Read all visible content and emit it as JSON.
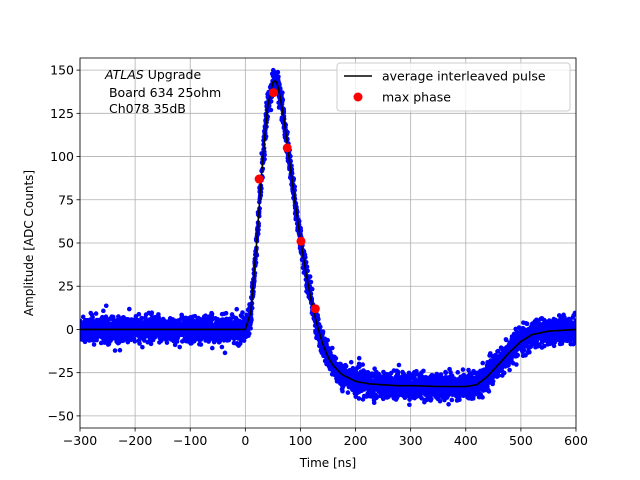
{
  "chart_data": {
    "type": "scatter",
    "title": "",
    "xlabel": "Time [ns]",
    "ylabel": "Amplitude [ADC Counts]",
    "xlim": [
      -300,
      600
    ],
    "ylim": [
      -57,
      157
    ],
    "xticks": [
      -300,
      -200,
      -100,
      0,
      100,
      200,
      300,
      400,
      500,
      600
    ],
    "yticks": [
      -50,
      -25,
      0,
      25,
      50,
      75,
      100,
      125,
      150
    ],
    "xtick_labels": [
      "−300",
      "−200",
      "−100",
      "0",
      "100",
      "200",
      "300",
      "400",
      "500",
      "600"
    ],
    "ytick_labels": [
      "−50",
      "−25",
      "0",
      "25",
      "50",
      "75",
      "100",
      "125",
      "150"
    ],
    "grid": true,
    "legend_position": "top-right",
    "annotation": {
      "experiment": "ATLAS",
      "experiment_suffix": " Upgrade",
      "line2": " Board 634 25ohm",
      "line3": " Ch078 35dB"
    },
    "series": [
      {
        "name": "",
        "kind": "scatter-band",
        "color": "#0000ff",
        "x": [
          -300,
          -250,
          -200,
          -150,
          -100,
          -50,
          -10,
          0,
          10,
          20,
          30,
          40,
          50,
          55,
          60,
          70,
          80,
          90,
          100,
          110,
          120,
          130,
          140,
          150,
          160,
          175,
          200,
          225,
          250,
          275,
          300,
          350,
          400,
          420,
          440,
          460,
          480,
          500,
          520,
          550,
          575,
          600
        ],
        "y": [
          0,
          0,
          0,
          0,
          0,
          0,
          0,
          0,
          10,
          48,
          92,
          128,
          143,
          144,
          140,
          122,
          98,
          74,
          52,
          33,
          16,
          3,
          -8,
          -16,
          -21,
          -26,
          -30,
          -31.5,
          -32,
          -32.5,
          -32.5,
          -33,
          -33,
          -32,
          -27,
          -20,
          -13,
          -7,
          -3,
          -1,
          -0.5,
          0
        ],
        "spread": 9
      },
      {
        "name": "average interleaved pulse",
        "kind": "line",
        "color": "#000000",
        "x": [
          -300,
          -250,
          -200,
          -150,
          -100,
          -50,
          -10,
          0,
          10,
          20,
          30,
          40,
          50,
          55,
          60,
          70,
          80,
          90,
          100,
          110,
          120,
          130,
          140,
          150,
          160,
          175,
          200,
          225,
          250,
          275,
          300,
          350,
          400,
          420,
          440,
          460,
          480,
          500,
          520,
          550,
          575,
          600
        ],
        "y": [
          0,
          0,
          0,
          0,
          0,
          0,
          0,
          0,
          10,
          48,
          92,
          128,
          143,
          144,
          140,
          122,
          98,
          74,
          52,
          33,
          16,
          3,
          -8,
          -16,
          -21,
          -26,
          -30,
          -31.5,
          -32,
          -32.5,
          -32.5,
          -33,
          -33,
          -32,
          -27,
          -20,
          -13,
          -7,
          -3,
          -1,
          -0.5,
          0
        ]
      },
      {
        "name": "max phase",
        "kind": "markers",
        "color": "#ff0000",
        "x": [
          25,
          51,
          76,
          101,
          127
        ],
        "y": [
          87,
          137,
          105,
          51,
          12
        ]
      }
    ]
  }
}
